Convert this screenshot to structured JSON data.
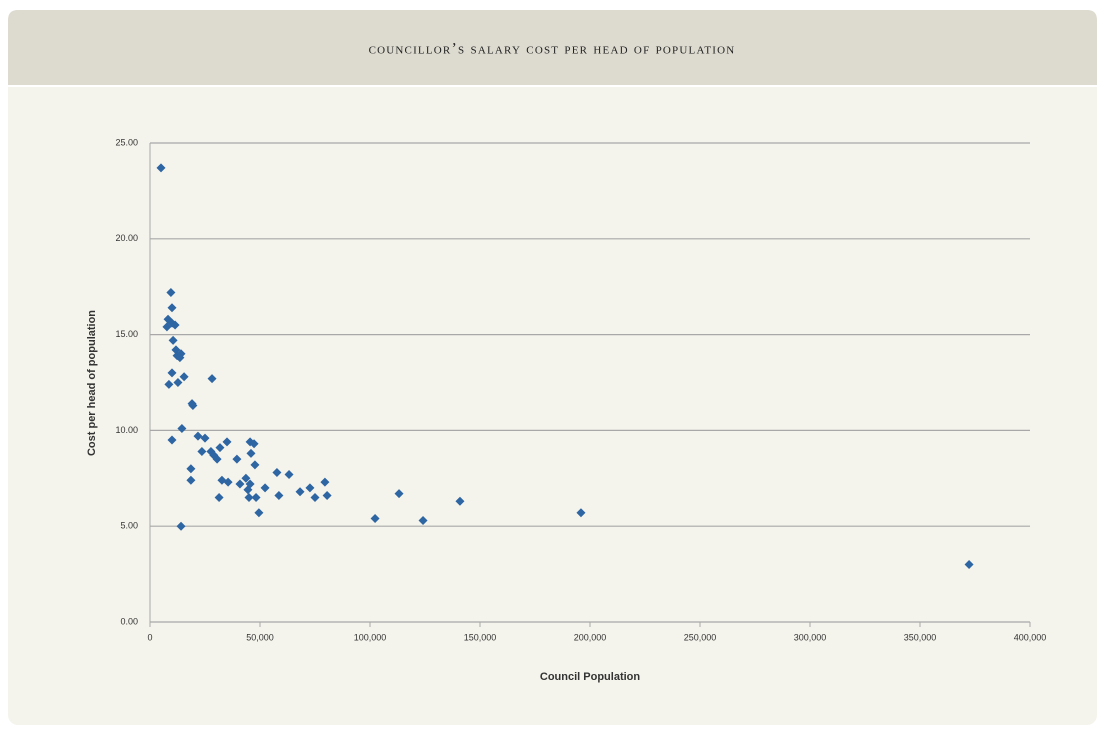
{
  "chart_data": {
    "type": "scatter",
    "title": "councillor’s salary cost per head of population",
    "x_label": "Council Population",
    "y_label": "Cost per head of population",
    "color": "#2e65a3",
    "grid": true,
    "xlim": [
      0,
      400000
    ],
    "ylim": [
      0,
      25
    ],
    "xticks": [
      0,
      {
        "value": 50000,
        "label": "50,000"
      },
      {
        "value": 100000,
        "label": "100,000"
      },
      {
        "value": 150000,
        "label": "150,000"
      },
      {
        "value": 200000,
        "label": "200,000"
      },
      {
        "value": 250000,
        "label": "250,000"
      },
      {
        "value": 300000,
        "label": "300,000"
      },
      {
        "value": 350000,
        "label": "350,000"
      },
      {
        "value": 400000,
        "label": "400,000"
      }
    ],
    "yticks": [
      {
        "value": 0,
        "label": "0.00"
      },
      {
        "value": 5,
        "label": "5.00"
      },
      {
        "value": 10,
        "label": "10.00"
      },
      {
        "value": 15,
        "label": "15.00"
      },
      {
        "value": 20,
        "label": "20.00"
      },
      {
        "value": 25,
        "label": "25.00"
      }
    ],
    "x": [
      5000,
      9500,
      10000,
      8200,
      7700,
      10000,
      11400,
      10500,
      11800,
      12300,
      14100,
      13600,
      10000,
      8600,
      12700,
      15500,
      28200,
      19100,
      19500,
      14500,
      10000,
      21800,
      25000,
      23600,
      27700,
      29000,
      30500,
      31800,
      35000,
      39500,
      45500,
      47300,
      45900,
      47700,
      18600,
      18600,
      32700,
      35500,
      40900,
      43600,
      45500,
      44500,
      52300,
      57700,
      63200,
      68200,
      72700,
      75000,
      58600,
      79500,
      80500,
      31400,
      45000,
      48200,
      49500,
      14100,
      102300,
      113200,
      124100,
      140900,
      195900,
      372300
    ],
    "values": [
      23.7,
      17.2,
      16.4,
      15.8,
      15.4,
      15.6,
      15.5,
      14.7,
      14.2,
      13.9,
      14.0,
      13.8,
      13.0,
      12.4,
      12.5,
      12.8,
      12.7,
      11.4,
      11.3,
      10.1,
      9.5,
      9.7,
      9.6,
      8.9,
      8.9,
      8.7,
      8.5,
      9.1,
      9.4,
      8.5,
      9.4,
      9.3,
      8.8,
      8.2,
      8.0,
      7.4,
      7.4,
      7.3,
      7.2,
      7.5,
      7.2,
      6.9,
      7.0,
      7.8,
      7.7,
      6.8,
      7.0,
      6.5,
      6.6,
      7.3,
      6.6,
      6.5,
      6.5,
      6.5,
      5.7,
      5.0,
      5.4,
      6.7,
      5.3,
      6.3,
      5.7,
      3.0
    ]
  }
}
